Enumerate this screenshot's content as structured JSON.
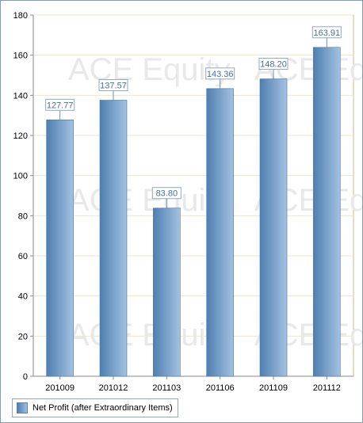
{
  "chart_data": {
    "type": "bar",
    "categories": [
      "201009",
      "201012",
      "201103",
      "201106",
      "201109",
      "201112"
    ],
    "values": [
      127.77,
      137.57,
      83.8,
      143.36,
      148.2,
      163.91
    ],
    "value_labels": [
      "127.77",
      "137.57",
      "83.80",
      "143.36",
      "148.20",
      "163.91"
    ],
    "ylim": [
      0,
      180
    ],
    "yticks": [
      "0",
      "20",
      "40",
      "60",
      "80",
      "100",
      "120",
      "140",
      "160",
      "180"
    ],
    "grid": true,
    "legend_position": "bottom-left",
    "series": [
      {
        "name": "Net Profit (after Extraordinary Items)",
        "values": [
          127.77,
          137.57,
          83.8,
          143.36,
          148.2,
          163.91
        ]
      }
    ],
    "colors": {
      "bar_dark": "#4f7fb0",
      "bar_light": "#a3c2e2",
      "label_text": "#4a6e96",
      "grid": "#efe6c8"
    }
  },
  "watermark": "ACE Equity",
  "legend": {
    "label": "Net Profit (after Extraordinary Items)"
  }
}
